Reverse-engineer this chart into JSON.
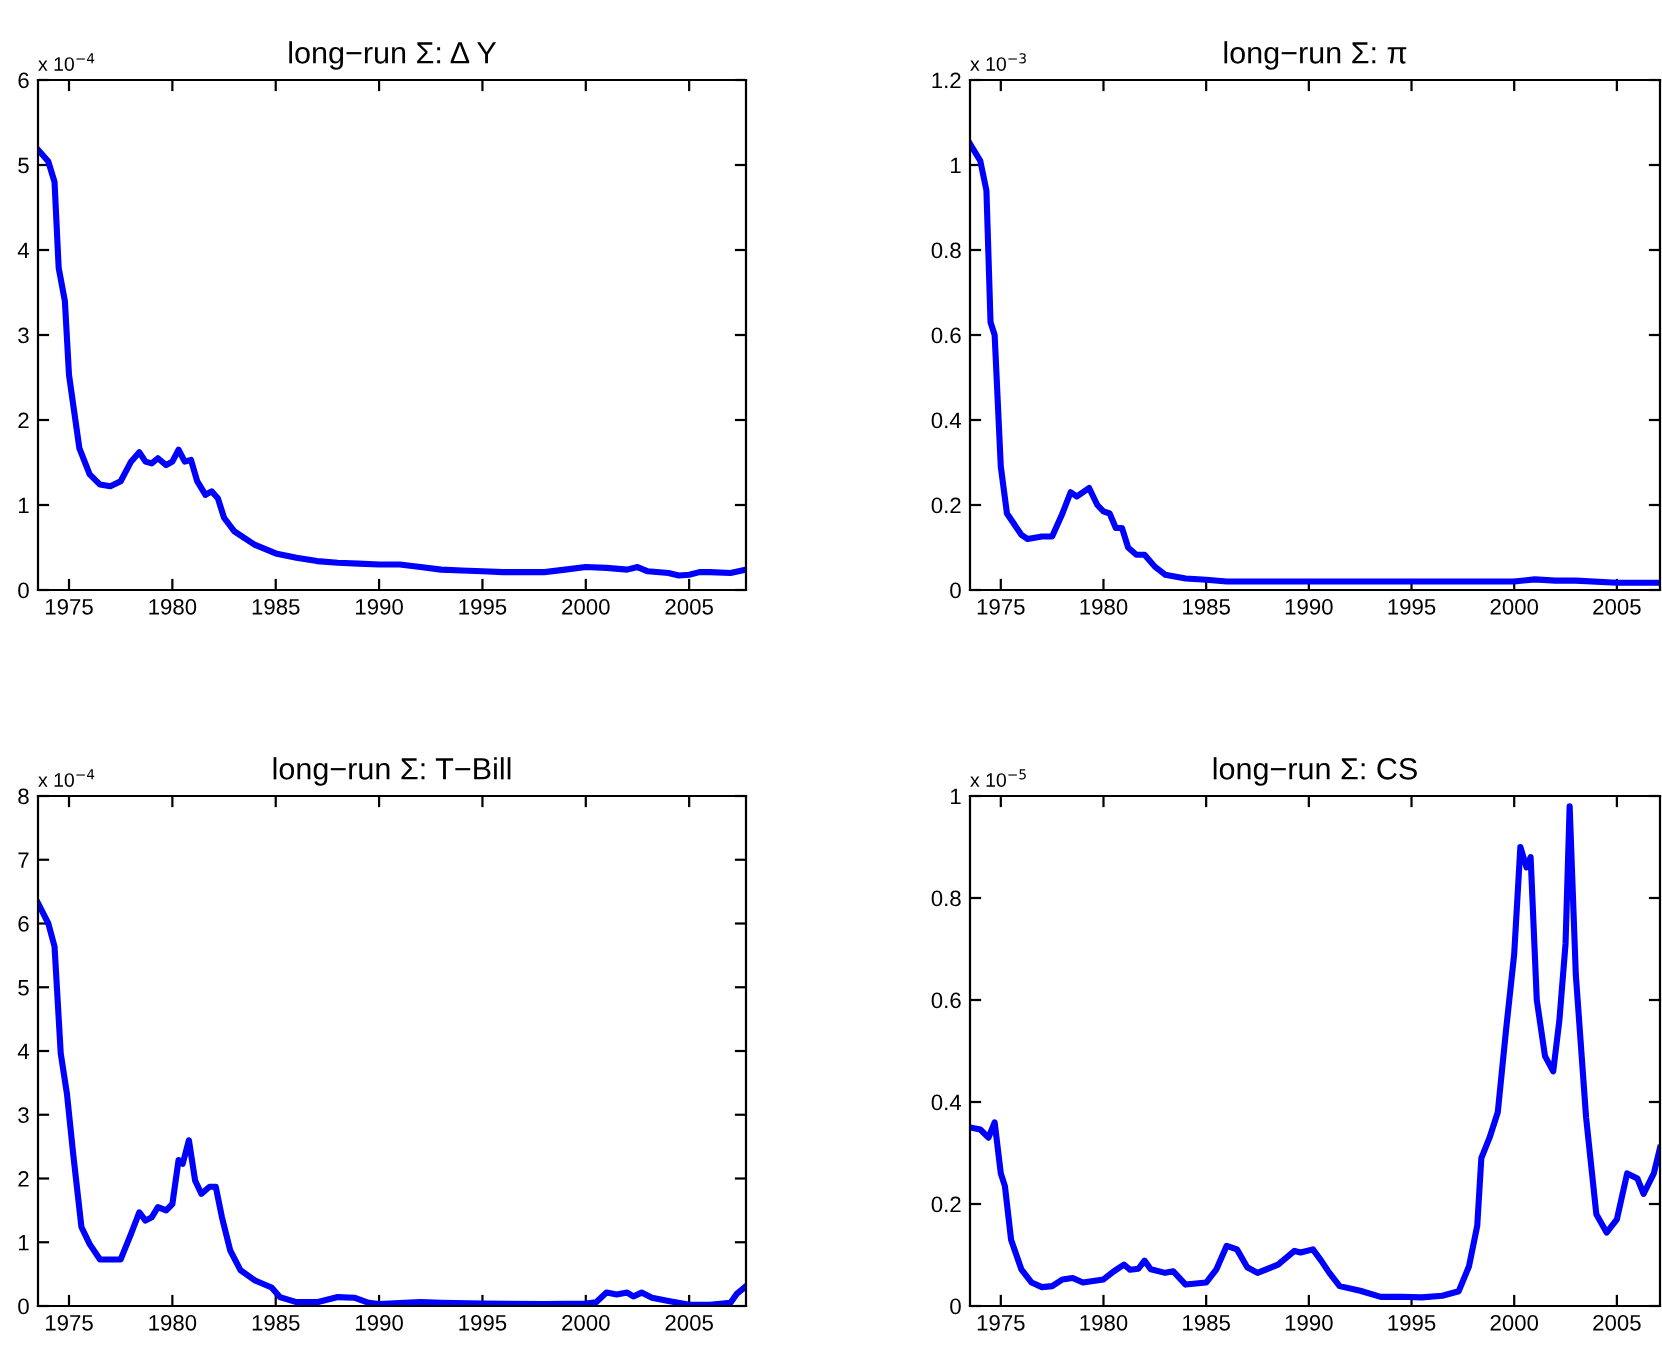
{
  "chart_data": [
    {
      "type": "line",
      "title": "long−run Σ: Δ Y",
      "annotations": [
        "x 10$^{−4}$"
      ],
      "xlim": [
        1973.5,
        2007.75
      ],
      "xticks": [
        1975,
        1980,
        1985,
        1990,
        1995,
        2000,
        2005
      ],
      "ylim": [
        0,
        6
      ],
      "yticks": [
        0,
        1,
        2,
        3,
        4,
        5,
        6
      ],
      "grid": false,
      "legend": false,
      "series": [
        {
          "color": "#0000ff",
          "x": [
            1973.5,
            1974.0,
            1974.3,
            1974.5,
            1974.8,
            1975.0,
            1975.5,
            1976.0,
            1976.5,
            1977.0,
            1977.5,
            1978.0,
            1978.4,
            1978.7,
            1979.0,
            1979.3,
            1979.7,
            1980.0,
            1980.3,
            1980.6,
            1980.9,
            1981.2,
            1981.6,
            1981.9,
            1982.2,
            1982.5,
            1983,
            1984,
            1985,
            1986,
            1987,
            1988,
            1989,
            1990,
            1991,
            1992,
            1993,
            1994,
            1995,
            1996,
            1997,
            1998,
            1999,
            2000,
            2001,
            2002,
            2002.5,
            2003,
            2004,
            2004.5,
            2005,
            2005.5,
            2006,
            2007,
            2007.75
          ],
          "values": [
            5.18,
            5.04,
            4.8,
            3.79,
            3.4,
            2.53,
            1.67,
            1.36,
            1.24,
            1.22,
            1.28,
            1.51,
            1.62,
            1.51,
            1.49,
            1.55,
            1.47,
            1.51,
            1.65,
            1.51,
            1.53,
            1.28,
            1.12,
            1.16,
            1.08,
            0.85,
            0.69,
            0.53,
            0.43,
            0.38,
            0.34,
            0.32,
            0.31,
            0.3,
            0.3,
            0.27,
            0.24,
            0.23,
            0.22,
            0.21,
            0.21,
            0.21,
            0.24,
            0.27,
            0.26,
            0.24,
            0.27,
            0.22,
            0.2,
            0.17,
            0.18,
            0.21,
            0.21,
            0.2,
            0.24
          ]
        }
      ]
    },
    {
      "type": "line",
      "title": "long−run Σ: π",
      "annotations": [
        "x 10$^{−3}$"
      ],
      "xlim": [
        1973.5,
        2007.1
      ],
      "xticks": [
        1975,
        1980,
        1985,
        1990,
        1995,
        2000,
        2005
      ],
      "ylim": [
        0,
        1.2
      ],
      "yticks": [
        0,
        0.2,
        0.4,
        0.6,
        0.8,
        1,
        1.2
      ],
      "grid": false,
      "legend": false,
      "series": [
        {
          "color": "#0000ff",
          "x": [
            1973.5,
            1974,
            1974.3,
            1974.5,
            1974.7,
            1975,
            1975.3,
            1976,
            1976.3,
            1977,
            1977.5,
            1978,
            1978.4,
            1978.7,
            1979.3,
            1979.7,
            1980,
            1980.3,
            1980.6,
            1980.9,
            1981.2,
            1981.6,
            1982,
            1982.5,
            1983,
            1984,
            1985,
            1986,
            1990,
            1995,
            2000,
            2001,
            2002,
            2003,
            2005,
            2007.1
          ],
          "values": [
            1.05,
            1.01,
            0.94,
            0.63,
            0.6,
            0.29,
            0.18,
            0.13,
            0.12,
            0.126,
            0.126,
            0.18,
            0.23,
            0.22,
            0.24,
            0.2,
            0.185,
            0.18,
            0.146,
            0.146,
            0.1,
            0.083,
            0.083,
            0.055,
            0.036,
            0.027,
            0.024,
            0.02,
            0.02,
            0.02,
            0.02,
            0.025,
            0.022,
            0.022,
            0.017,
            0.017
          ]
        }
      ]
    },
    {
      "type": "line",
      "title": "long−run Σ: T−Bill",
      "annotations": [
        "x 10$^{−4}$"
      ],
      "xlim": [
        1973.5,
        2007.75
      ],
      "xticks": [
        1975,
        1980,
        1985,
        1990,
        1995,
        2000,
        2005
      ],
      "ylim": [
        0,
        8
      ],
      "yticks": [
        0,
        1,
        2,
        3,
        4,
        5,
        6,
        7,
        8
      ],
      "grid": false,
      "legend": false,
      "series": [
        {
          "color": "#0000ff",
          "x": [
            1973.5,
            1974,
            1974.3,
            1974.6,
            1974.9,
            1975.2,
            1975.6,
            1976,
            1976.5,
            1977,
            1977.5,
            1978,
            1978.4,
            1978.7,
            1979.0,
            1979.3,
            1979.7,
            1980,
            1980.3,
            1980.5,
            1980.8,
            1981.1,
            1981.4,
            1981.8,
            1982.1,
            1982.4,
            1982.8,
            1983.3,
            1984,
            1984.8,
            1985.2,
            1986,
            1987,
            1988,
            1988.8,
            1989.5,
            1990,
            1992,
            1993,
            1995,
            1998,
            2000,
            2000.5,
            2001,
            2001.5,
            2002,
            2002.3,
            2002.7,
            2003.2,
            2004,
            2005,
            2006,
            2007,
            2007.3,
            2007.75
          ],
          "values": [
            6.32,
            6.0,
            5.64,
            3.96,
            3.33,
            2.39,
            1.24,
            0.97,
            0.73,
            0.73,
            0.73,
            1.13,
            1.47,
            1.34,
            1.39,
            1.55,
            1.5,
            1.6,
            2.29,
            2.23,
            2.6,
            1.97,
            1.76,
            1.87,
            1.87,
            1.39,
            0.87,
            0.56,
            0.4,
            0.29,
            0.14,
            0.06,
            0.06,
            0.14,
            0.13,
            0.05,
            0.03,
            0.06,
            0.05,
            0.04,
            0.03,
            0.04,
            0.06,
            0.21,
            0.18,
            0.21,
            0.15,
            0.21,
            0.13,
            0.08,
            0.02,
            0.02,
            0.05,
            0.19,
            0.31
          ]
        }
      ]
    },
    {
      "type": "line",
      "title": "long−run Σ: CS",
      "annotations": [
        "x 10$^{−5}$"
      ],
      "xlim": [
        1973.5,
        2007.1
      ],
      "xticks": [
        1975,
        1980,
        1985,
        1990,
        1995,
        2000,
        2005
      ],
      "ylim": [
        0,
        1
      ],
      "yticks": [
        0,
        0.2,
        0.4,
        0.6,
        0.8,
        1
      ],
      "grid": false,
      "legend": false,
      "series": [
        {
          "color": "#0000ff",
          "x": [
            1973.5,
            1974,
            1974.4,
            1974.7,
            1975,
            1975.2,
            1975.5,
            1976,
            1976.5,
            1977,
            1977.5,
            1978,
            1978.5,
            1979,
            1980,
            1980.5,
            1981,
            1981.3,
            1981.7,
            1982,
            1982.3,
            1983,
            1983.4,
            1984,
            1985,
            1985.5,
            1986,
            1986.5,
            1987,
            1987.5,
            1988.5,
            1989.3,
            1989.6,
            1990.2,
            1990.6,
            1991,
            1991.5,
            1992.5,
            1993.5,
            1994.5,
            1995.5,
            1996.5,
            1997.3,
            1997.8,
            1998.2,
            1998.4,
            1998.8,
            1999.2,
            1999.6,
            2000,
            2000.3,
            2000.6,
            2000.8,
            2001.1,
            2001.5,
            2001.9,
            2002.2,
            2002.5,
            2002.7,
            2003.0,
            2003.5,
            2004,
            2004.5,
            2005,
            2005.5,
            2006,
            2006.3,
            2006.8,
            2007.1
          ],
          "values": [
            0.35,
            0.346,
            0.33,
            0.36,
            0.26,
            0.235,
            0.13,
            0.072,
            0.046,
            0.037,
            0.039,
            0.052,
            0.055,
            0.046,
            0.052,
            0.068,
            0.081,
            0.071,
            0.073,
            0.089,
            0.072,
            0.065,
            0.068,
            0.042,
            0.046,
            0.072,
            0.118,
            0.111,
            0.076,
            0.065,
            0.081,
            0.108,
            0.105,
            0.111,
            0.089,
            0.065,
            0.039,
            0.03,
            0.018,
            0.018,
            0.017,
            0.02,
            0.029,
            0.078,
            0.157,
            0.29,
            0.33,
            0.38,
            0.54,
            0.69,
            0.9,
            0.86,
            0.88,
            0.6,
            0.49,
            0.46,
            0.56,
            0.71,
            0.98,
            0.65,
            0.37,
            0.18,
            0.144,
            0.17,
            0.26,
            0.25,
            0.22,
            0.26,
            0.31
          ]
        }
      ]
    }
  ]
}
